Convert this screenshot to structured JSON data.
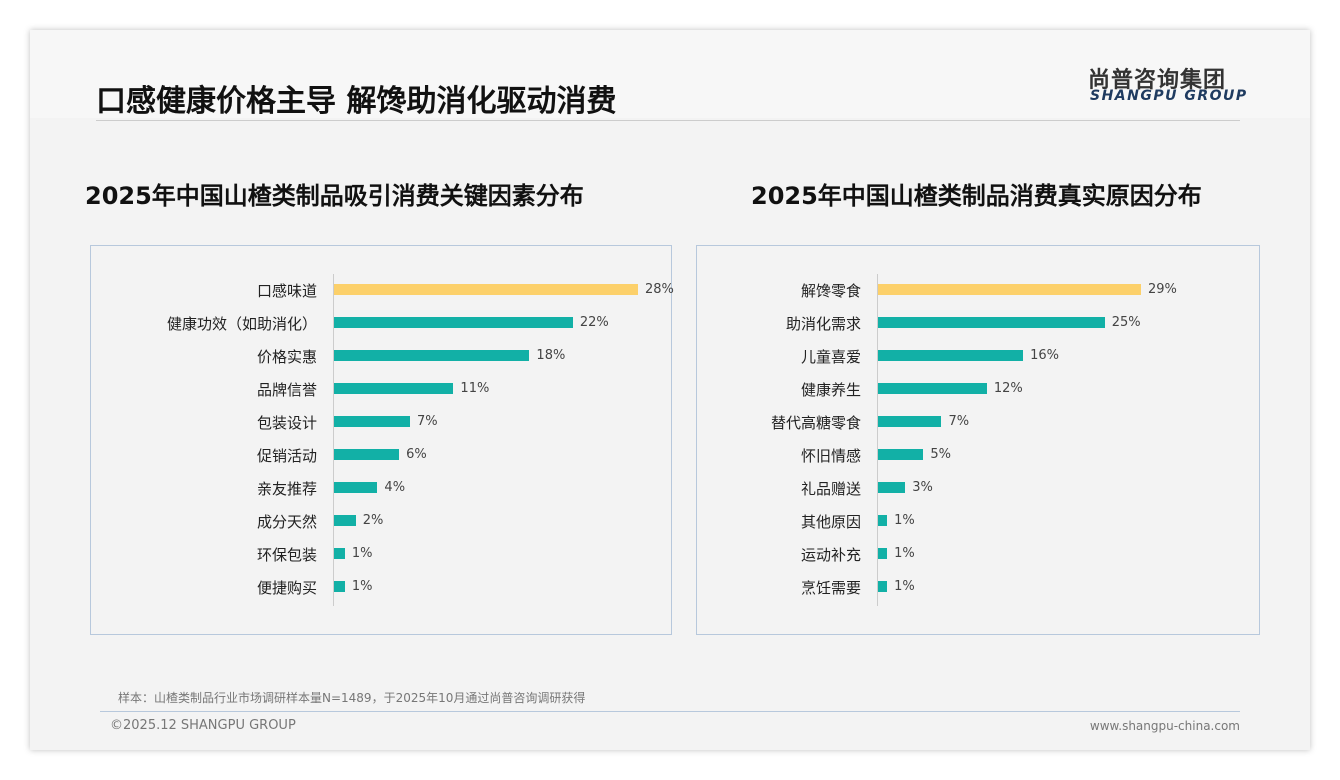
{
  "header": {
    "title": "口感健康价格主导 解馋助消化驱动消费",
    "logo_cn": "尚普咨询集团",
    "logo_en": "SHANGPU GROUP"
  },
  "colors": {
    "highlight": "#fcd06a",
    "bar": "#12b0a6"
  },
  "chart_data": [
    {
      "type": "bar",
      "orientation": "horizontal",
      "title": "2025年中国山楂类制品吸引消费关键因素分布",
      "unit": "%",
      "categories": [
        "口感味道",
        "健康功效（如助消化）",
        "价格实惠",
        "品牌信誉",
        "包装设计",
        "促销活动",
        "亲友推荐",
        "成分天然",
        "环保包装",
        "便捷购买"
      ],
      "values": [
        28,
        22,
        18,
        11,
        7,
        6,
        4,
        2,
        1,
        1
      ],
      "labels": [
        "28%",
        "22%",
        "18%",
        "11%",
        "7%",
        "6%",
        "4%",
        "2%",
        "1%",
        "1%"
      ],
      "xlim": [
        0,
        28
      ]
    },
    {
      "type": "bar",
      "orientation": "horizontal",
      "title": "2025年中国山楂类制品消费真实原因分布",
      "unit": "%",
      "categories": [
        "解馋零食",
        "助消化需求",
        "儿童喜爱",
        "健康养生",
        "替代高糖零食",
        "怀旧情感",
        "礼品赠送",
        "其他原因",
        "运动补充",
        "烹饪需要"
      ],
      "values": [
        29,
        25,
        16,
        12,
        7,
        5,
        3,
        1,
        1,
        1
      ],
      "labels": [
        "29%",
        "25%",
        "16%",
        "12%",
        "7%",
        "5%",
        "3%",
        "1%",
        "1%",
        "1%"
      ],
      "xlim": [
        0,
        29
      ]
    }
  ],
  "footer": {
    "note": "样本：山楂类制品行业市场调研样本量N=1489，于2025年10月通过尚普咨询调研获得",
    "copyright": "©2025.12 SHANGPU GROUP",
    "url": "www.shangpu-china.com"
  }
}
